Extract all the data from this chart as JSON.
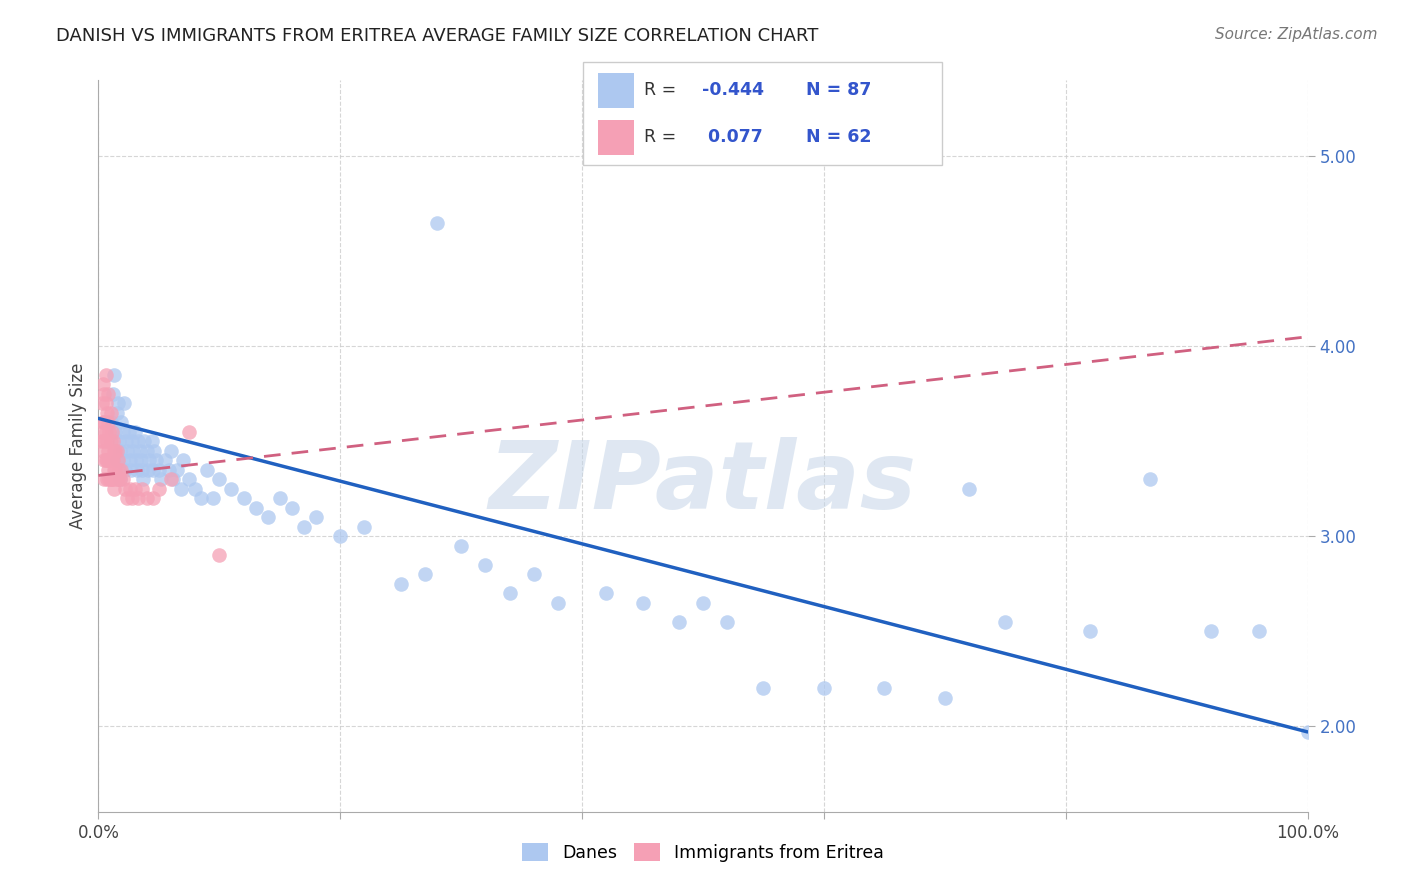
{
  "title": "DANISH VS IMMIGRANTS FROM ERITREA AVERAGE FAMILY SIZE CORRELATION CHART",
  "source": "Source: ZipAtlas.com",
  "ylabel": "Average Family Size",
  "yticks": [
    2.0,
    3.0,
    4.0,
    5.0
  ],
  "xlim": [
    0.0,
    1.0
  ],
  "ylim": [
    1.55,
    5.4
  ],
  "danes_color": "#adc8f0",
  "eritrea_color": "#f5a0b5",
  "danes_line_color": "#2060c0",
  "eritrea_line_color": "#d06080",
  "danes_R": -0.444,
  "danes_N": 87,
  "eritrea_R": 0.077,
  "eritrea_N": 62,
  "watermark": "ZIPatlas",
  "danes_line_x0": 0.0,
  "danes_line_x1": 1.0,
  "danes_line_y0": 3.62,
  "danes_line_y1": 1.97,
  "eritrea_line_x0": 0.0,
  "eritrea_line_x1": 1.0,
  "eritrea_line_y0": 3.32,
  "eritrea_line_y1": 4.05,
  "danes_x": [
    0.01,
    0.012,
    0.013,
    0.014,
    0.015,
    0.015,
    0.016,
    0.017,
    0.018,
    0.018,
    0.019,
    0.02,
    0.02,
    0.021,
    0.022,
    0.023,
    0.024,
    0.025,
    0.026,
    0.027,
    0.028,
    0.029,
    0.03,
    0.031,
    0.032,
    0.033,
    0.034,
    0.035,
    0.036,
    0.037,
    0.038,
    0.04,
    0.041,
    0.042,
    0.044,
    0.045,
    0.046,
    0.048,
    0.05,
    0.052,
    0.055,
    0.058,
    0.06,
    0.062,
    0.065,
    0.068,
    0.07,
    0.075,
    0.08,
    0.085,
    0.09,
    0.095,
    0.1,
    0.11,
    0.12,
    0.13,
    0.14,
    0.15,
    0.16,
    0.17,
    0.18,
    0.2,
    0.22,
    0.25,
    0.27,
    0.28,
    0.3,
    0.32,
    0.34,
    0.36,
    0.38,
    0.42,
    0.45,
    0.48,
    0.5,
    0.52,
    0.55,
    0.6,
    0.65,
    0.7,
    0.72,
    0.75,
    0.82,
    0.87,
    0.92,
    0.96,
    1.0
  ],
  "danes_y": [
    3.6,
    3.75,
    3.85,
    3.55,
    3.65,
    3.4,
    3.7,
    3.5,
    3.45,
    3.3,
    3.6,
    3.55,
    3.4,
    3.7,
    3.35,
    3.5,
    3.45,
    3.55,
    3.4,
    3.35,
    3.5,
    3.45,
    3.55,
    3.4,
    3.35,
    3.5,
    3.45,
    3.4,
    3.35,
    3.3,
    3.5,
    3.45,
    3.35,
    3.4,
    3.5,
    3.35,
    3.45,
    3.4,
    3.35,
    3.3,
    3.4,
    3.35,
    3.45,
    3.3,
    3.35,
    3.25,
    3.4,
    3.3,
    3.25,
    3.2,
    3.35,
    3.2,
    3.3,
    3.25,
    3.2,
    3.15,
    3.1,
    3.2,
    3.15,
    3.05,
    3.1,
    3.0,
    3.05,
    2.75,
    2.8,
    4.65,
    2.95,
    2.85,
    2.7,
    2.8,
    2.65,
    2.7,
    2.65,
    2.55,
    2.65,
    2.55,
    2.2,
    2.2,
    2.2,
    2.15,
    3.25,
    2.55,
    2.5,
    3.3,
    2.5,
    2.5,
    1.97
  ],
  "eritrea_x": [
    0.002,
    0.003,
    0.003,
    0.004,
    0.004,
    0.004,
    0.005,
    0.005,
    0.005,
    0.005,
    0.005,
    0.006,
    0.006,
    0.006,
    0.006,
    0.007,
    0.007,
    0.007,
    0.007,
    0.008,
    0.008,
    0.008,
    0.008,
    0.009,
    0.009,
    0.009,
    0.01,
    0.01,
    0.01,
    0.01,
    0.011,
    0.011,
    0.011,
    0.012,
    0.012,
    0.012,
    0.013,
    0.013,
    0.013,
    0.014,
    0.014,
    0.015,
    0.015,
    0.016,
    0.016,
    0.017,
    0.018,
    0.019,
    0.02,
    0.022,
    0.024,
    0.026,
    0.028,
    0.03,
    0.033,
    0.036,
    0.04,
    0.045,
    0.05,
    0.06,
    0.075,
    0.1
  ],
  "eritrea_y": [
    3.5,
    3.7,
    3.55,
    3.8,
    3.6,
    3.45,
    3.75,
    3.6,
    3.5,
    3.4,
    3.3,
    3.85,
    3.7,
    3.55,
    3.4,
    3.65,
    3.5,
    3.4,
    3.3,
    3.75,
    3.6,
    3.45,
    3.35,
    3.55,
    3.4,
    3.3,
    3.65,
    3.5,
    3.4,
    3.3,
    3.55,
    3.4,
    3.3,
    3.5,
    3.4,
    3.3,
    3.45,
    3.35,
    3.25,
    3.45,
    3.35,
    3.45,
    3.3,
    3.4,
    3.3,
    3.35,
    3.3,
    3.35,
    3.3,
    3.25,
    3.2,
    3.25,
    3.2,
    3.25,
    3.2,
    3.25,
    3.2,
    3.2,
    3.25,
    3.3,
    3.55,
    2.9
  ]
}
